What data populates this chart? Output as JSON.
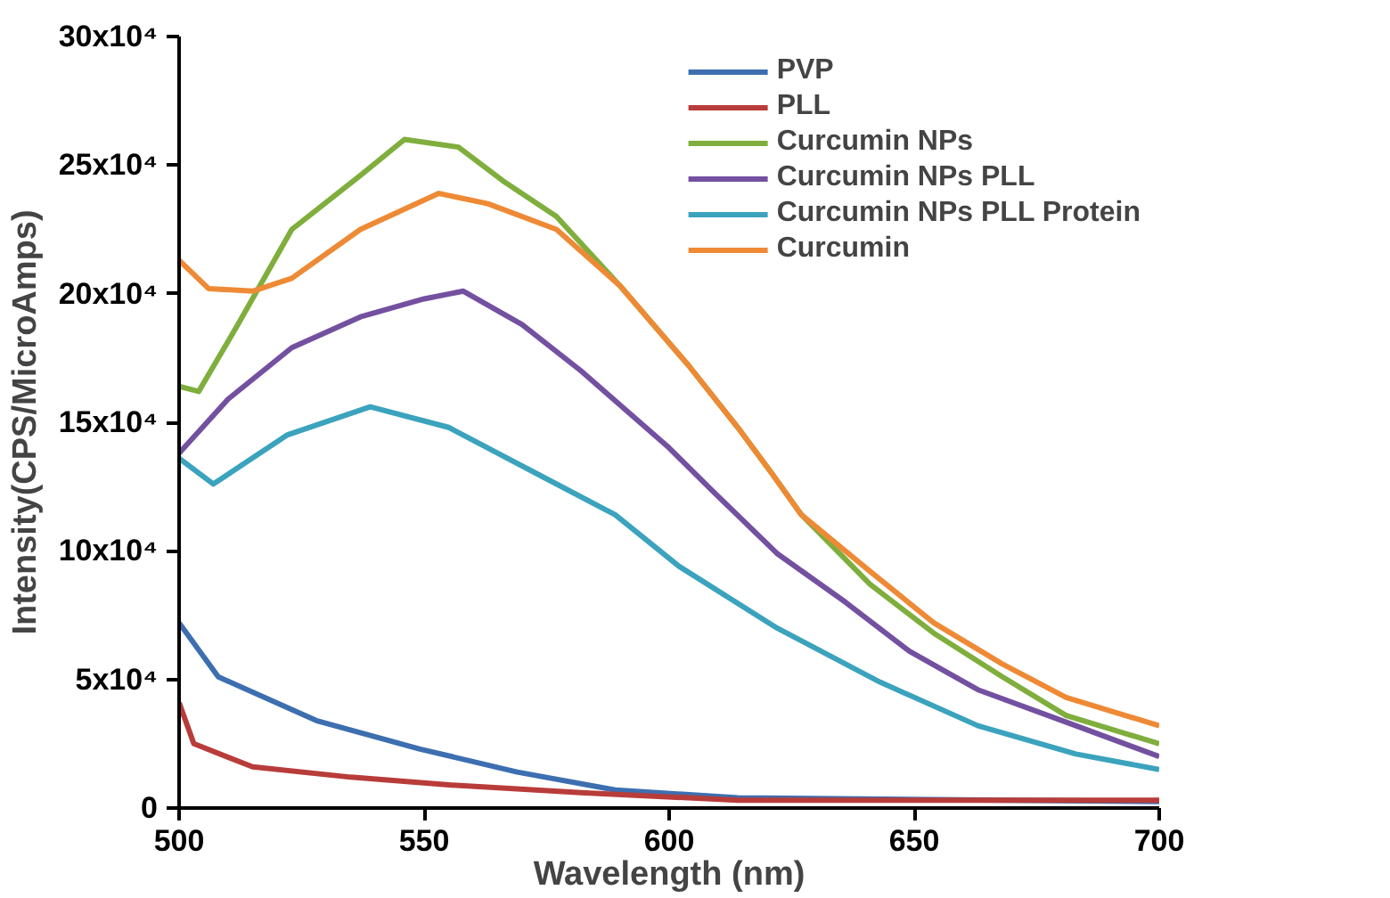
{
  "chart_data": {
    "type": "line",
    "xlabel": "Wavelength (nm)",
    "ylabel": "Intensity(CPS/MicroAmps)",
    "xlim": [
      500,
      700
    ],
    "xticks": [
      500,
      550,
      600,
      650,
      700
    ],
    "ylim": [
      0,
      300000
    ],
    "yticks": [
      {
        "value": 0,
        "label": "0"
      },
      {
        "value": 50000,
        "label": "5x10⁴"
      },
      {
        "value": 100000,
        "label": "10x10⁴"
      },
      {
        "value": 150000,
        "label": "15x10⁴"
      },
      {
        "value": 200000,
        "label": "20x10⁴"
      },
      {
        "value": 250000,
        "label": "25x10⁴"
      },
      {
        "value": 300000,
        "label": "30x10⁴"
      }
    ],
    "grid": false,
    "legend": "top right",
    "marker": "none",
    "line_style": "solid",
    "series": [
      {
        "name": "PVP",
        "color": "#3d6fb0",
        "x": [
          500,
          508,
          528,
          549,
          569,
          589,
          614,
          700
        ],
        "values": [
          72000,
          51000,
          34000,
          23000,
          14000,
          7000,
          4000,
          2500
        ]
      },
      {
        "name": "PLL",
        "color": "#b83c3a",
        "x": [
          500,
          503,
          515,
          535,
          555,
          582,
          614,
          700
        ],
        "values": [
          41000,
          25000,
          16000,
          12000,
          9000,
          6000,
          3000,
          3000
        ]
      },
      {
        "name": "Curcumin NPs",
        "color": "#7fae3d",
        "x": [
          500,
          504,
          512,
          523,
          537,
          546,
          557,
          566,
          577,
          590,
          604,
          614,
          621,
          627,
          641,
          654,
          668,
          681,
          700
        ],
        "values": [
          164000,
          162000,
          188000,
          225000,
          246000,
          260000,
          257000,
          244000,
          230000,
          203000,
          172000,
          148000,
          130000,
          114000,
          87000,
          68000,
          51000,
          36000,
          25000
        ]
      },
      {
        "name": "Curcumin NPs PLL",
        "color": "#7450a0",
        "x": [
          500,
          510,
          523,
          537,
          550,
          558,
          570,
          582,
          600,
          609,
          622,
          636,
          649,
          663,
          683,
          700
        ],
        "values": [
          138000,
          159000,
          179000,
          191000,
          198000,
          201000,
          188000,
          170000,
          140000,
          123000,
          99000,
          80000,
          61000,
          46000,
          32000,
          20000
        ]
      },
      {
        "name": "Curcumin NPs PLL Protein",
        "color": "#3ba3bd",
        "x": [
          500,
          507,
          522,
          539,
          555,
          575,
          589,
          602,
          622,
          643,
          663,
          683,
          700
        ],
        "values": [
          136000,
          126000,
          145000,
          156000,
          148000,
          128000,
          114000,
          94000,
          70000,
          49000,
          32000,
          21000,
          15000
        ]
      },
      {
        "name": "Curcumin",
        "color": "#ee8a35",
        "x": [
          500,
          506,
          515,
          523,
          537,
          553,
          563,
          577,
          590,
          604,
          614,
          621,
          627,
          641,
          654,
          668,
          681,
          700
        ],
        "values": [
          213000,
          202000,
          201000,
          206000,
          225000,
          239000,
          235000,
          225000,
          203000,
          172000,
          148000,
          130000,
          114000,
          92000,
          72000,
          56000,
          43000,
          32000
        ]
      }
    ]
  }
}
